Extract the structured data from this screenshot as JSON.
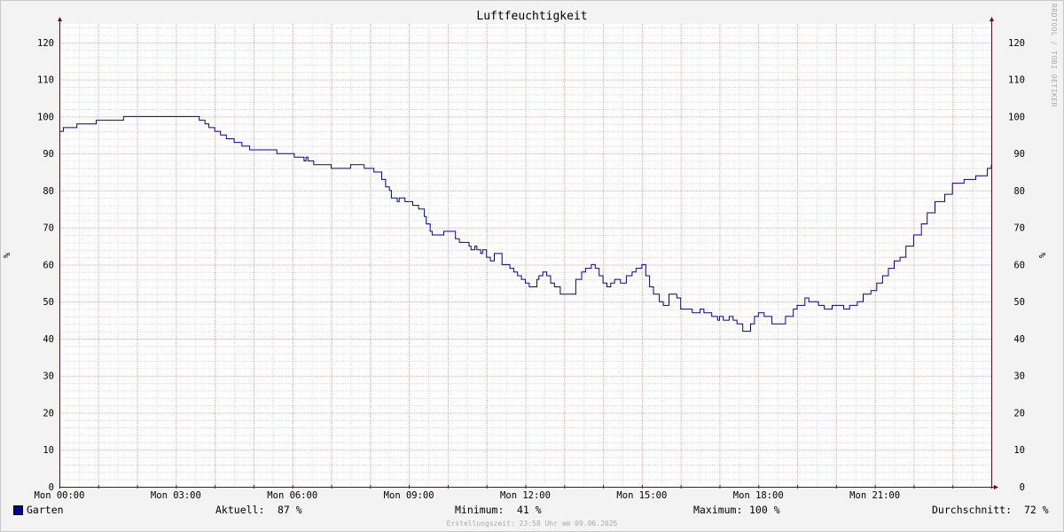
{
  "chart_data": {
    "type": "line",
    "title": "Luftfeuchtigkeit",
    "ylabel": "%",
    "ylim": [
      0,
      125
    ],
    "yticks": [
      0,
      10,
      20,
      30,
      40,
      50,
      60,
      70,
      80,
      90,
      100,
      110,
      120
    ],
    "xticks": [
      "Mon 00:00",
      "Mon 03:00",
      "Mon 06:00",
      "Mon 09:00",
      "Mon 12:00",
      "Mon 15:00",
      "Mon 18:00",
      "Mon 21:00"
    ],
    "xlim_hours": [
      0,
      24
    ],
    "grid": true,
    "series": [
      {
        "name": "Garten",
        "color": "#0000a0",
        "x_hours": [
          0,
          0.05,
          0.1,
          0.4,
          0.45,
          0.9,
          0.95,
          1.6,
          1.65,
          3.5,
          3.6,
          3.75,
          3.85,
          4.0,
          4.15,
          4.3,
          4.5,
          4.7,
          4.9,
          5.5,
          5.6,
          5.7,
          6.05,
          6.2,
          6.3,
          6.35,
          6.4,
          6.5,
          6.55,
          6.9,
          7.0,
          7.4,
          7.5,
          7.8,
          7.85,
          8.0,
          8.1,
          8.3,
          8.4,
          8.5,
          8.55,
          8.7,
          8.75,
          8.9,
          9.1,
          9.2,
          9.25,
          9.4,
          9.45,
          9.55,
          9.6,
          9.8,
          9.9,
          10.2,
          10.3,
          10.35,
          10.5,
          10.55,
          10.6,
          10.7,
          10.75,
          10.85,
          10.9,
          11.0,
          11.1,
          11.2,
          11.4,
          11.6,
          11.7,
          11.8,
          11.9,
          12.0,
          12.1,
          12.3,
          12.35,
          12.45,
          12.5,
          12.55,
          12.65,
          12.75,
          12.9,
          13.1,
          13.3,
          13.45,
          13.55,
          13.7,
          13.8,
          13.9,
          14.0,
          14.1,
          14.2,
          14.3,
          14.45,
          14.6,
          14.75,
          14.85,
          15.0,
          15.1,
          15.2,
          15.3,
          15.45,
          15.55,
          15.7,
          15.9,
          16.0,
          16.2,
          16.3,
          16.5,
          16.6,
          16.8,
          16.95,
          17.0,
          17.1,
          17.25,
          17.35,
          17.45,
          17.6,
          17.7,
          17.8,
          17.9,
          18.0,
          18.15,
          18.35,
          18.5,
          18.7,
          18.9,
          19.0,
          19.2,
          19.3,
          19.55,
          19.7,
          19.9,
          20.0,
          20.2,
          20.35,
          20.55,
          20.7,
          20.9,
          21.05,
          21.2,
          21.35,
          21.5,
          21.65,
          21.8,
          22.0,
          22.2,
          22.35,
          22.55,
          22.8,
          23.0,
          23.3,
          23.6,
          23.9,
          24.0
        ],
        "values": [
          96,
          96,
          97,
          97,
          98,
          98,
          99,
          99,
          100,
          100,
          99,
          98,
          97,
          96,
          95,
          94,
          93,
          92,
          91,
          91,
          90,
          90,
          89,
          89,
          88,
          89,
          88,
          88,
          87,
          87,
          86,
          86,
          87,
          87,
          86,
          86,
          85,
          83,
          81,
          80,
          78,
          77,
          78,
          77,
          76,
          76,
          75,
          73,
          71,
          69,
          68,
          68,
          69,
          67,
          66,
          66,
          66,
          65,
          64,
          65,
          64,
          63,
          64,
          62,
          61,
          63,
          60,
          59,
          58,
          57,
          56,
          55,
          54,
          56,
          57,
          58,
          58,
          57,
          55,
          54,
          52,
          52,
          56,
          58,
          59,
          60,
          59,
          57,
          55,
          54,
          55,
          56,
          55,
          57,
          58,
          59,
          60,
          57,
          54,
          52,
          50,
          49,
          52,
          51,
          48,
          48,
          47,
          48,
          47,
          46,
          45,
          46,
          45,
          46,
          45,
          44,
          42,
          42,
          44,
          46,
          47,
          46,
          44,
          44,
          46,
          48,
          49,
          51,
          50,
          49,
          48,
          49,
          49,
          48,
          49,
          50,
          52,
          53,
          55,
          57,
          59,
          61,
          62,
          65,
          68,
          71,
          74,
          77,
          79,
          82,
          83,
          84,
          86,
          87
        ]
      }
    ],
    "stats": {
      "current_label": "Aktuell:",
      "current_value": "87 %",
      "min_label": "Minimum:",
      "min_value": "41 %",
      "max_label": "Maximum:",
      "max_value": "100 %",
      "avg_label": "Durchschnitt:",
      "avg_value": "72 %"
    }
  },
  "watermark": "RRDTOOL / TOBI OETIKER",
  "created": "Erstellungszeit: 23:58 Uhr am 09.06.2025",
  "colors": {
    "background": "#f3f3f3",
    "plot_background": "#ffffff",
    "minor_grid": "#dcdcdc",
    "major_grid": "#e8a0a0",
    "axis": "#800000",
    "line": "#0000a0"
  }
}
